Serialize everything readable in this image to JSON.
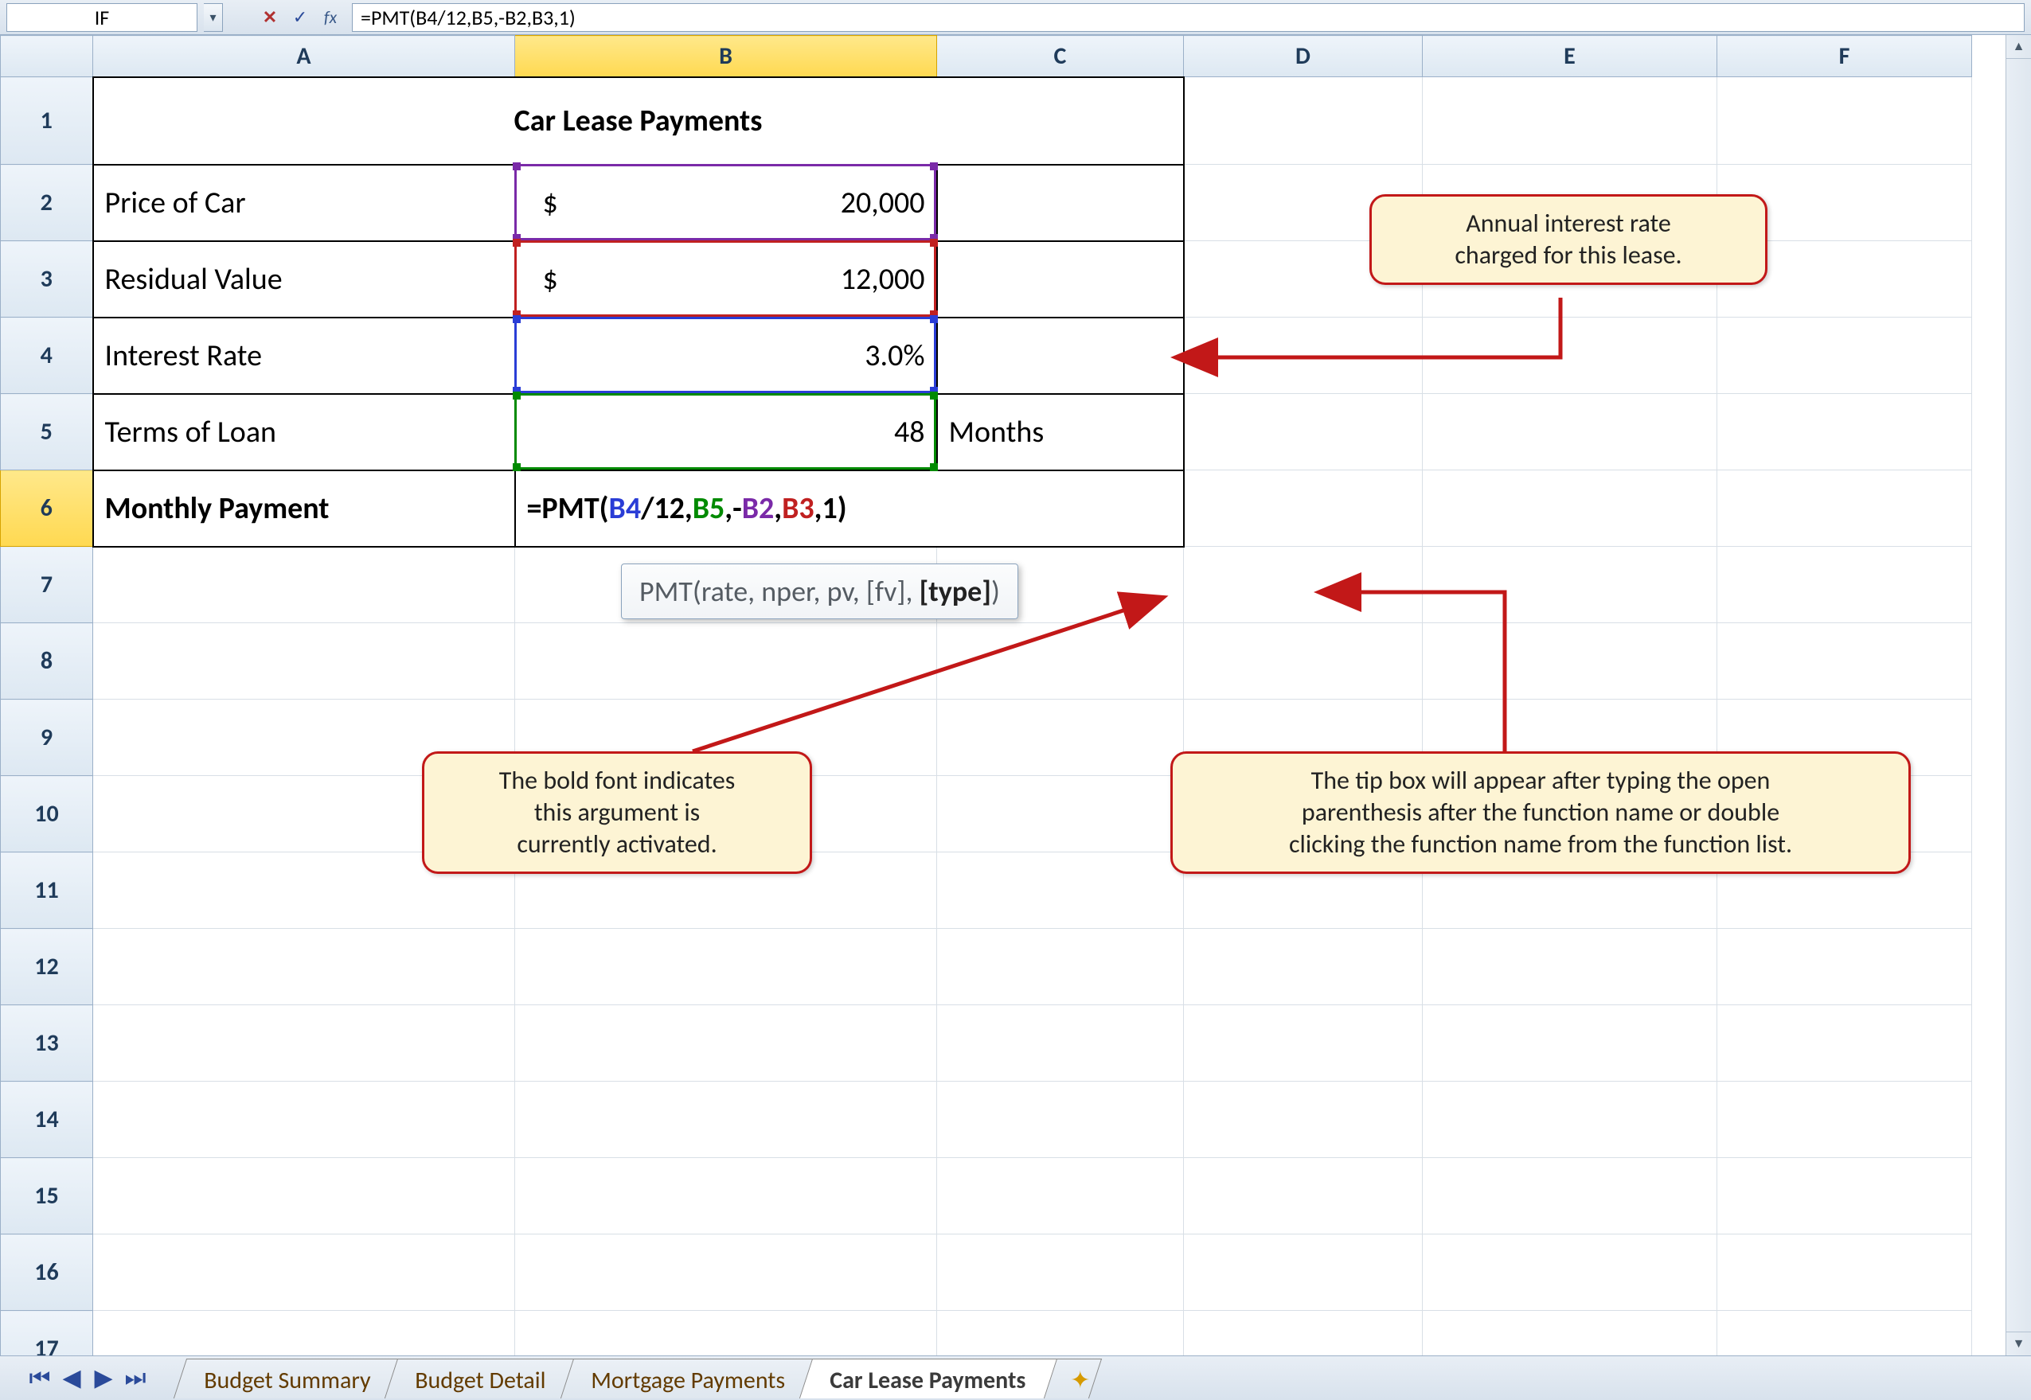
{
  "formula_bar": {
    "name_box": "IF",
    "formula": "=PMT(B4/12,B5,-B2,B3,1)"
  },
  "columns": {
    "widths": {
      "rowhdr": 116,
      "A": 530,
      "B": 530,
      "C": 310,
      "D": 300,
      "E": 370,
      "F": 320
    },
    "labels": [
      "A",
      "B",
      "C",
      "D",
      "E",
      "F"
    ],
    "active": "B"
  },
  "rows": {
    "labels": [
      "1",
      "2",
      "3",
      "4",
      "5",
      "6",
      "7",
      "8",
      "9",
      "10",
      "11",
      "12",
      "13",
      "14",
      "15",
      "16",
      "17"
    ],
    "heights": {
      "header": 52,
      "1": 110,
      "default": 96
    },
    "active": "6"
  },
  "sheet": {
    "title": "Car Lease Payments",
    "r2": {
      "label": "Price of Car",
      "currency": "$",
      "value": "20,000"
    },
    "r3": {
      "label": "Residual Value",
      "currency": "$",
      "value": "12,000"
    },
    "r4": {
      "label": "Interest Rate",
      "value": "3.0%"
    },
    "r5": {
      "label": "Terms of Loan",
      "value": "48",
      "unit": "Months"
    },
    "r6": {
      "label": "Monthly Payment"
    }
  },
  "formula_in_cell": {
    "segments": [
      {
        "t": "=PMT(",
        "c": "black"
      },
      {
        "t": "B4",
        "c": "blue"
      },
      {
        "t": "/12,",
        "c": "black"
      },
      {
        "t": "B5",
        "c": "green"
      },
      {
        "t": ",-",
        "c": "black"
      },
      {
        "t": "B2",
        "c": "purple"
      },
      {
        "t": ",",
        "c": "black"
      },
      {
        "t": "B3",
        "c": "red"
      },
      {
        "t": ",1)",
        "c": "black"
      }
    ]
  },
  "ref_highlights": {
    "B2": {
      "color": "purple"
    },
    "B3": {
      "color": "red"
    },
    "B4": {
      "color": "blue"
    },
    "B5": {
      "color": "green"
    }
  },
  "tooltip": {
    "prefix": "PMT(rate, nper, pv, [fv], ",
    "bold": "[type]",
    "suffix": ")"
  },
  "callouts": {
    "c1": "Annual interest rate\ncharged for this lease.",
    "c2": "The bold font indicates\nthis argument is\ncurrently activated.",
    "c3": "The tip box will appear after typing the open\nparenthesis after the function name or double\nclicking the function name from the function list."
  },
  "tabs": {
    "items": [
      "Budget Summary",
      "Budget Detail",
      "Mortgage Payments",
      "Car Lease Payments"
    ],
    "active_index": 3
  },
  "colors": {
    "title_bg": "#f1c1c1",
    "callout_bg": "#fdf4d4",
    "callout_border": "#c21818",
    "ref_blue": "#2a3dd6",
    "ref_green": "#008a00",
    "ref_purple": "#7a2aa8",
    "ref_red": "#c02020"
  }
}
